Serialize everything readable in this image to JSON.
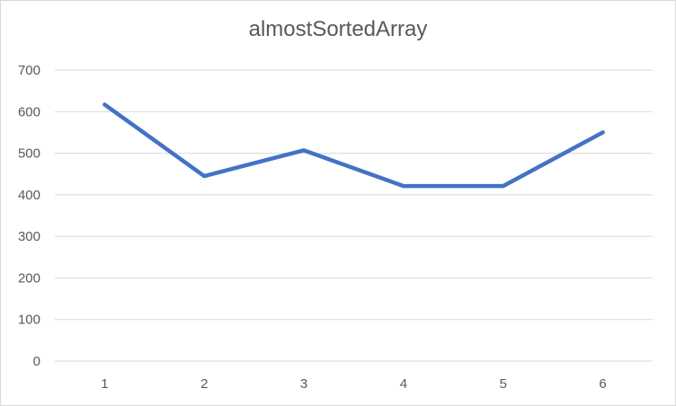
{
  "chart_data": {
    "type": "line",
    "title": "almostSortedArray",
    "xlabel": "",
    "ylabel": "",
    "categories": [
      "1",
      "2",
      "3",
      "4",
      "5",
      "6"
    ],
    "series": [
      {
        "values": [
          617,
          445,
          507,
          421,
          421,
          550
        ],
        "color": "#4472c4"
      }
    ],
    "ylim": [
      0,
      700
    ],
    "yticks": [
      0,
      100,
      200,
      300,
      400,
      500,
      600,
      700
    ],
    "grid": true,
    "legend": "none",
    "gridline_color": "#d9d9d9",
    "text_color": "#595959"
  }
}
